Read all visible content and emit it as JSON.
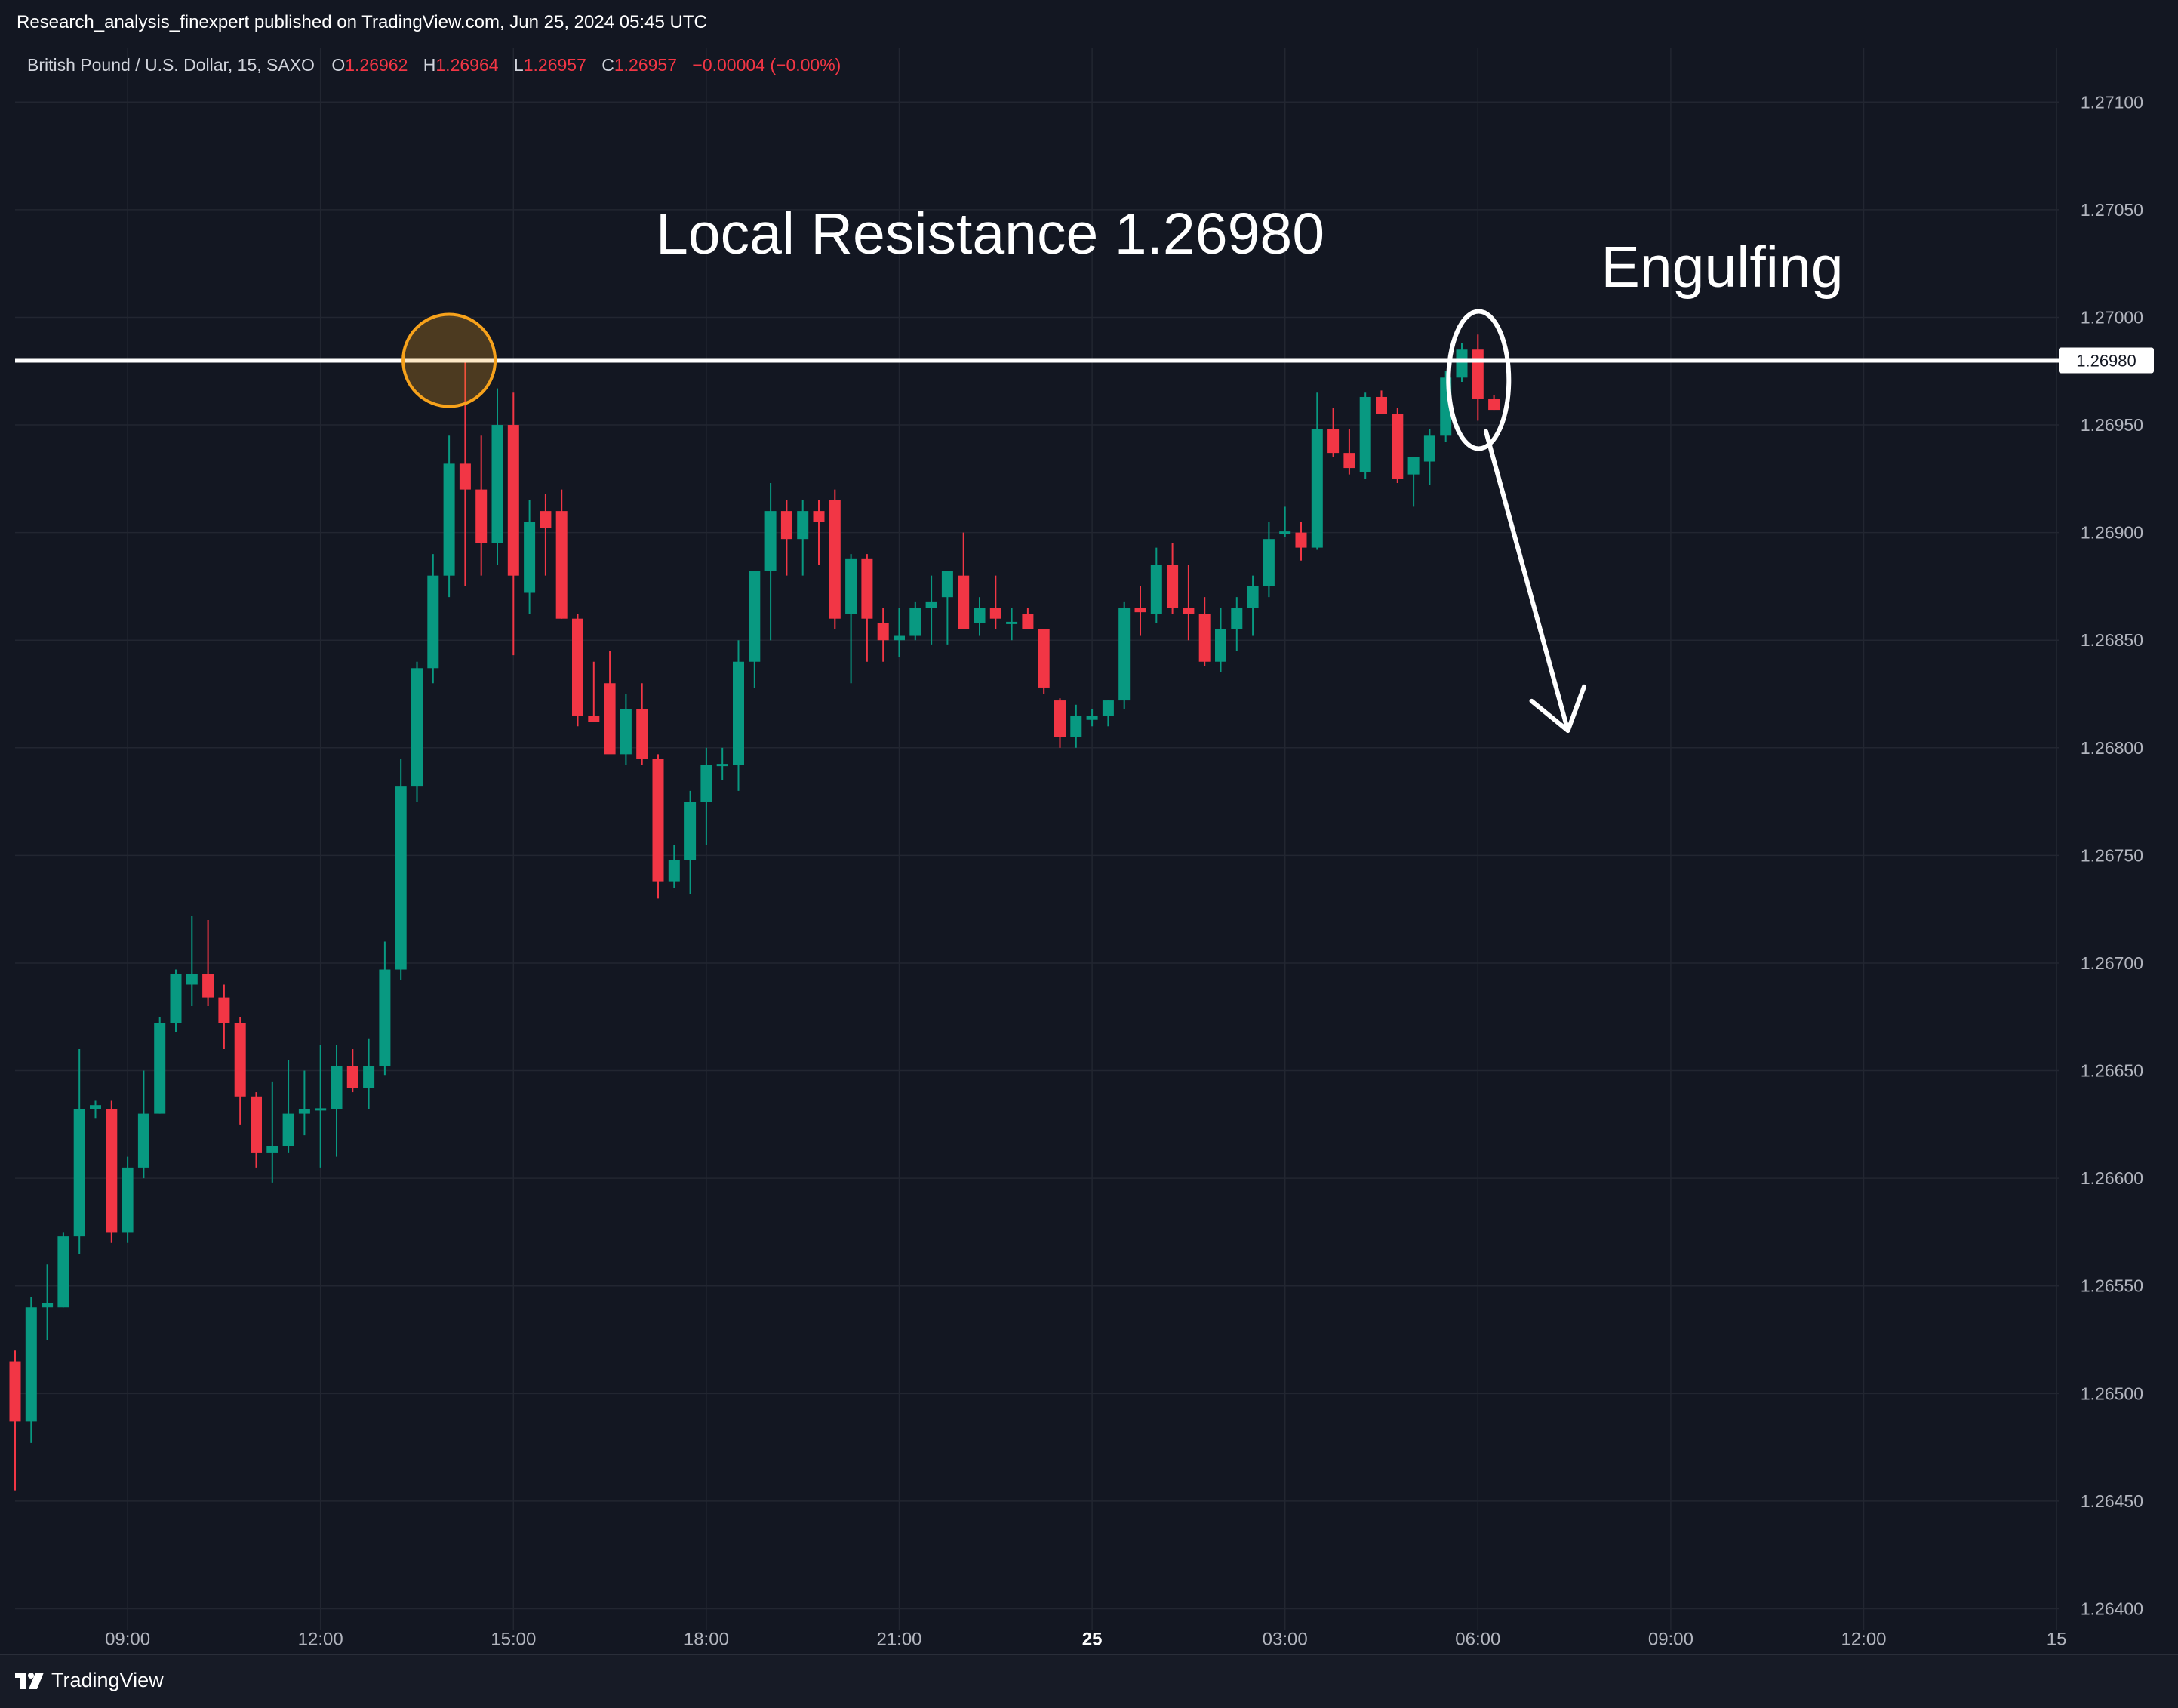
{
  "header": {
    "published_line": "Research_analysis_finexpert published on TradingView.com, Jun 25, 2024 05:45 UTC",
    "symbol": "British Pound / U.S. Dollar, 15, SAXO",
    "ohlc": {
      "o_label": "O",
      "o_value": "1.26962",
      "h_label": "H",
      "h_value": "1.26964",
      "l_label": "L",
      "l_value": "1.26957",
      "c_label": "C",
      "c_value": "1.26957",
      "change": "−0.00004 (−0.00%)"
    }
  },
  "footer": {
    "brand": "TradingView",
    "logo_icon": "tradingview-logo-icon"
  },
  "colors": {
    "background": "#131722",
    "grid": "#222631",
    "up": "#089981",
    "down": "#f23645",
    "text": "#b2b5be",
    "annotation": "#ffffff",
    "highlight_circle": "#f7a21b"
  },
  "chart_data": {
    "type": "candlestick",
    "ylim": [
      1.2639,
      1.27125
    ],
    "y_ticks": [
      "1.26400",
      "1.26450",
      "1.26500",
      "1.26550",
      "1.26600",
      "1.26650",
      "1.26700",
      "1.26750",
      "1.26800",
      "1.26850",
      "1.26900",
      "1.26950",
      "1.27000",
      "1.27050",
      "1.27100"
    ],
    "x_ticks": [
      {
        "i": 7,
        "label": "09:00"
      },
      {
        "i": 19,
        "label": "12:00"
      },
      {
        "i": 31,
        "label": "15:00"
      },
      {
        "i": 43,
        "label": "18:00"
      },
      {
        "i": 55,
        "label": "21:00"
      },
      {
        "i": 67,
        "label": "25",
        "bold": true
      },
      {
        "i": 79,
        "label": "03:00"
      },
      {
        "i": 91,
        "label": "06:00"
      },
      {
        "i": 103,
        "label": "09:00"
      },
      {
        "i": 115,
        "label": "12:00"
      },
      {
        "i": 127,
        "label": "15"
      }
    ],
    "candles": [
      [
        1.26515,
        1.2652,
        1.26455,
        1.26487
      ],
      [
        1.26487,
        1.26545,
        1.26477,
        1.2654
      ],
      [
        1.2654,
        1.2656,
        1.26525,
        1.26542
      ],
      [
        1.2654,
        1.26575,
        1.2654,
        1.26573
      ],
      [
        1.26573,
        1.2666,
        1.26565,
        1.26632
      ],
      [
        1.26632,
        1.26636,
        1.26628,
        1.26634
      ],
      [
        1.26632,
        1.26636,
        1.2657,
        1.26575
      ],
      [
        1.26575,
        1.2661,
        1.2657,
        1.26605
      ],
      [
        1.26605,
        1.2665,
        1.266,
        1.2663
      ],
      [
        1.2663,
        1.26675,
        1.2663,
        1.26672
      ],
      [
        1.26672,
        1.26697,
        1.26668,
        1.26695
      ],
      [
        1.2669,
        1.26722,
        1.2668,
        1.26695
      ],
      [
        1.26695,
        1.2672,
        1.2668,
        1.26684
      ],
      [
        1.26684,
        1.2669,
        1.2666,
        1.26672
      ],
      [
        1.26672,
        1.26675,
        1.26625,
        1.26638
      ],
      [
        1.26638,
        1.2664,
        1.26605,
        1.26612
      ],
      [
        1.26612,
        1.26645,
        1.26598,
        1.26615
      ],
      [
        1.26615,
        1.26655,
        1.26612,
        1.2663
      ],
      [
        1.2663,
        1.2665,
        1.2662,
        1.26632
      ],
      [
        1.26632,
        1.26662,
        1.26605,
        1.26632
      ],
      [
        1.26632,
        1.26662,
        1.2661,
        1.26652
      ],
      [
        1.26652,
        1.2666,
        1.2664,
        1.26642
      ],
      [
        1.26642,
        1.26665,
        1.26632,
        1.26652
      ],
      [
        1.26652,
        1.2671,
        1.26648,
        1.26697
      ],
      [
        1.26697,
        1.26795,
        1.26692,
        1.26782
      ],
      [
        1.26782,
        1.2684,
        1.26775,
        1.26837
      ],
      [
        1.26837,
        1.2689,
        1.2683,
        1.2688
      ],
      [
        1.2688,
        1.26945,
        1.2687,
        1.26932
      ],
      [
        1.26932,
        1.2698,
        1.26875,
        1.2692
      ],
      [
        1.2692,
        1.26945,
        1.2688,
        1.26895
      ],
      [
        1.26895,
        1.26967,
        1.26885,
        1.2695
      ],
      [
        1.2695,
        1.26965,
        1.26843,
        1.2688
      ],
      [
        1.26872,
        1.26915,
        1.26862,
        1.26905
      ],
      [
        1.2691,
        1.26918,
        1.2688,
        1.26902
      ],
      [
        1.2691,
        1.2692,
        1.2686,
        1.2686
      ],
      [
        1.2686,
        1.26862,
        1.2681,
        1.26815
      ],
      [
        1.26815,
        1.2684,
        1.26812,
        1.26812
      ],
      [
        1.2683,
        1.26845,
        1.268,
        1.26797
      ],
      [
        1.26797,
        1.26825,
        1.26792,
        1.26818
      ],
      [
        1.26818,
        1.2683,
        1.26792,
        1.26795
      ],
      [
        1.26795,
        1.26797,
        1.2673,
        1.26738
      ],
      [
        1.26738,
        1.26755,
        1.26735,
        1.26748
      ],
      [
        1.26748,
        1.2678,
        1.26732,
        1.26775
      ],
      [
        1.26775,
        1.268,
        1.26755,
        1.26792
      ],
      [
        1.26792,
        1.268,
        1.26785,
        1.26792
      ],
      [
        1.26792,
        1.2685,
        1.2678,
        1.2684
      ],
      [
        1.2684,
        1.2688,
        1.26828,
        1.26882
      ],
      [
        1.26882,
        1.26923,
        1.2685,
        1.2691
      ],
      [
        1.2691,
        1.26915,
        1.2688,
        1.26897
      ],
      [
        1.26897,
        1.26915,
        1.2688,
        1.2691
      ],
      [
        1.2691,
        1.26915,
        1.26885,
        1.26905
      ],
      [
        1.26915,
        1.2692,
        1.26855,
        1.2686
      ],
      [
        1.26862,
        1.2689,
        1.2683,
        1.26888
      ],
      [
        1.26888,
        1.2689,
        1.2684,
        1.2686
      ],
      [
        1.26858,
        1.26865,
        1.2684,
        1.2685
      ],
      [
        1.2685,
        1.26865,
        1.26842,
        1.26852
      ],
      [
        1.26852,
        1.26868,
        1.2685,
        1.26865
      ],
      [
        1.26865,
        1.2688,
        1.26848,
        1.26868
      ],
      [
        1.2687,
        1.2688,
        1.26848,
        1.26882
      ],
      [
        1.2688,
        1.269,
        1.26855,
        1.26855
      ],
      [
        1.26858,
        1.2687,
        1.26852,
        1.26865
      ],
      [
        1.26865,
        1.2688,
        1.26855,
        1.2686
      ],
      [
        1.26857,
        1.26865,
        1.2685,
        1.26858
      ],
      [
        1.26862,
        1.26865,
        1.26855,
        1.26855
      ],
      [
        1.26855,
        1.26855,
        1.26825,
        1.26828
      ],
      [
        1.26822,
        1.26823,
        1.268,
        1.26805
      ],
      [
        1.26805,
        1.2682,
        1.268,
        1.26815
      ],
      [
        1.26813,
        1.26818,
        1.2681,
        1.26815
      ],
      [
        1.26815,
        1.26822,
        1.2681,
        1.26822
      ],
      [
        1.26822,
        1.26868,
        1.26818,
        1.26865
      ],
      [
        1.26865,
        1.26875,
        1.26852,
        1.26863
      ],
      [
        1.26862,
        1.26893,
        1.26858,
        1.26885
      ],
      [
        1.26885,
        1.26895,
        1.26862,
        1.26865
      ],
      [
        1.26865,
        1.26885,
        1.2685,
        1.26862
      ],
      [
        1.26862,
        1.2687,
        1.26838,
        1.2684
      ],
      [
        1.2684,
        1.26865,
        1.26835,
        1.26855
      ],
      [
        1.26855,
        1.2687,
        1.26845,
        1.26865
      ],
      [
        1.26865,
        1.2688,
        1.26852,
        1.26875
      ],
      [
        1.26875,
        1.26905,
        1.2687,
        1.26897
      ],
      [
        1.269,
        1.26912,
        1.26898,
        1.269
      ],
      [
        1.269,
        1.26905,
        1.26887,
        1.26893
      ],
      [
        1.26893,
        1.26965,
        1.26892,
        1.26948
      ],
      [
        1.26948,
        1.26958,
        1.26935,
        1.26937
      ],
      [
        1.26937,
        1.26948,
        1.26927,
        1.2693
      ],
      [
        1.26928,
        1.26965,
        1.26925,
        1.26963
      ],
      [
        1.26963,
        1.26966,
        1.26955,
        1.26955
      ],
      [
        1.26955,
        1.26958,
        1.26923,
        1.26925
      ],
      [
        1.26927,
        1.26935,
        1.26912,
        1.26935
      ],
      [
        1.26933,
        1.26948,
        1.26922,
        1.26945
      ],
      [
        1.26945,
        1.26975,
        1.26942,
        1.26972
      ],
      [
        1.26972,
        1.26988,
        1.2697,
        1.26985
      ],
      [
        1.26985,
        1.26992,
        1.26952,
        1.26962
      ],
      [
        1.26962,
        1.26964,
        1.26957,
        1.26957
      ]
    ],
    "annotations": {
      "resistance_value": 1.2698,
      "resistance_tag": "1.26980",
      "resistance_label": "Local Resistance 1.26980",
      "pattern_label": "Engulfing",
      "highlight_candle_index": 27,
      "engulfing_candle_indices": [
        90,
        92
      ],
      "arrow_from": {
        "i": 91.5,
        "price": 1.26947
      },
      "arrow_to": {
        "i": 96.6,
        "price": 1.26808
      }
    }
  }
}
